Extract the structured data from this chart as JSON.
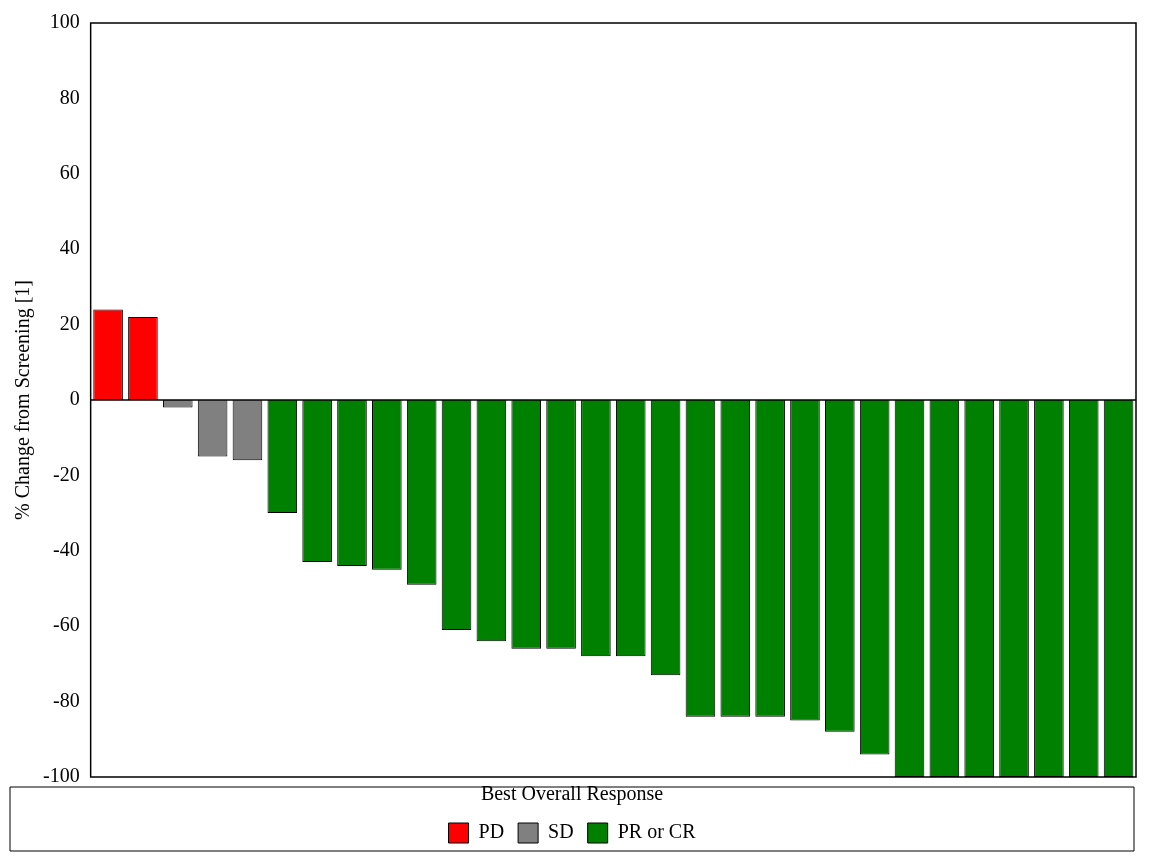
{
  "chart_data": {
    "type": "bar",
    "ylabel": "% Change from Screening [1]",
    "legend_title": "Best Overall Response",
    "categories": [
      null,
      null,
      null,
      null,
      null,
      null,
      null,
      null,
      null,
      null,
      null,
      null,
      null,
      null,
      null,
      null,
      null,
      null,
      null,
      null,
      null,
      null,
      null,
      null,
      null,
      null,
      null,
      null,
      null,
      null
    ],
    "stacked": true,
    "series": [
      {
        "name": "PD",
        "color": "#ff0000",
        "values": [
          24,
          22,
          null,
          null,
          null,
          null,
          null,
          null,
          null,
          null,
          null,
          null,
          null,
          null,
          null,
          null,
          null,
          null,
          null,
          null,
          null,
          null,
          null,
          null,
          null,
          null,
          null,
          null,
          null,
          null
        ]
      },
      {
        "name": "SD",
        "color": "#808080",
        "values": [
          null,
          null,
          -2,
          -15,
          -16,
          null,
          null,
          null,
          null,
          null,
          null,
          null,
          null,
          null,
          null,
          null,
          null,
          null,
          null,
          null,
          null,
          null,
          null,
          null,
          null,
          null,
          null,
          null,
          null,
          null
        ]
      },
      {
        "name": "PR or CR",
        "color": "#008000",
        "values": [
          null,
          null,
          null,
          null,
          null,
          -30,
          -43,
          -44,
          -45,
          -49,
          -61,
          -64,
          -66,
          -66,
          -68,
          -68,
          -73,
          -84,
          -84,
          -84,
          -85,
          -88,
          -94,
          -100,
          -100,
          -100,
          -100,
          -100,
          -100,
          -100
        ]
      }
    ],
    "ylim": [
      -100,
      100
    ],
    "yticks": [
      -100,
      -80,
      -60,
      -40,
      -20,
      0,
      20,
      40,
      60,
      80,
      100
    ],
    "ref_lines": [
      {
        "axis": "y",
        "value": 0,
        "color": "#000000"
      }
    ],
    "grid": false,
    "legend": "bottom"
  }
}
